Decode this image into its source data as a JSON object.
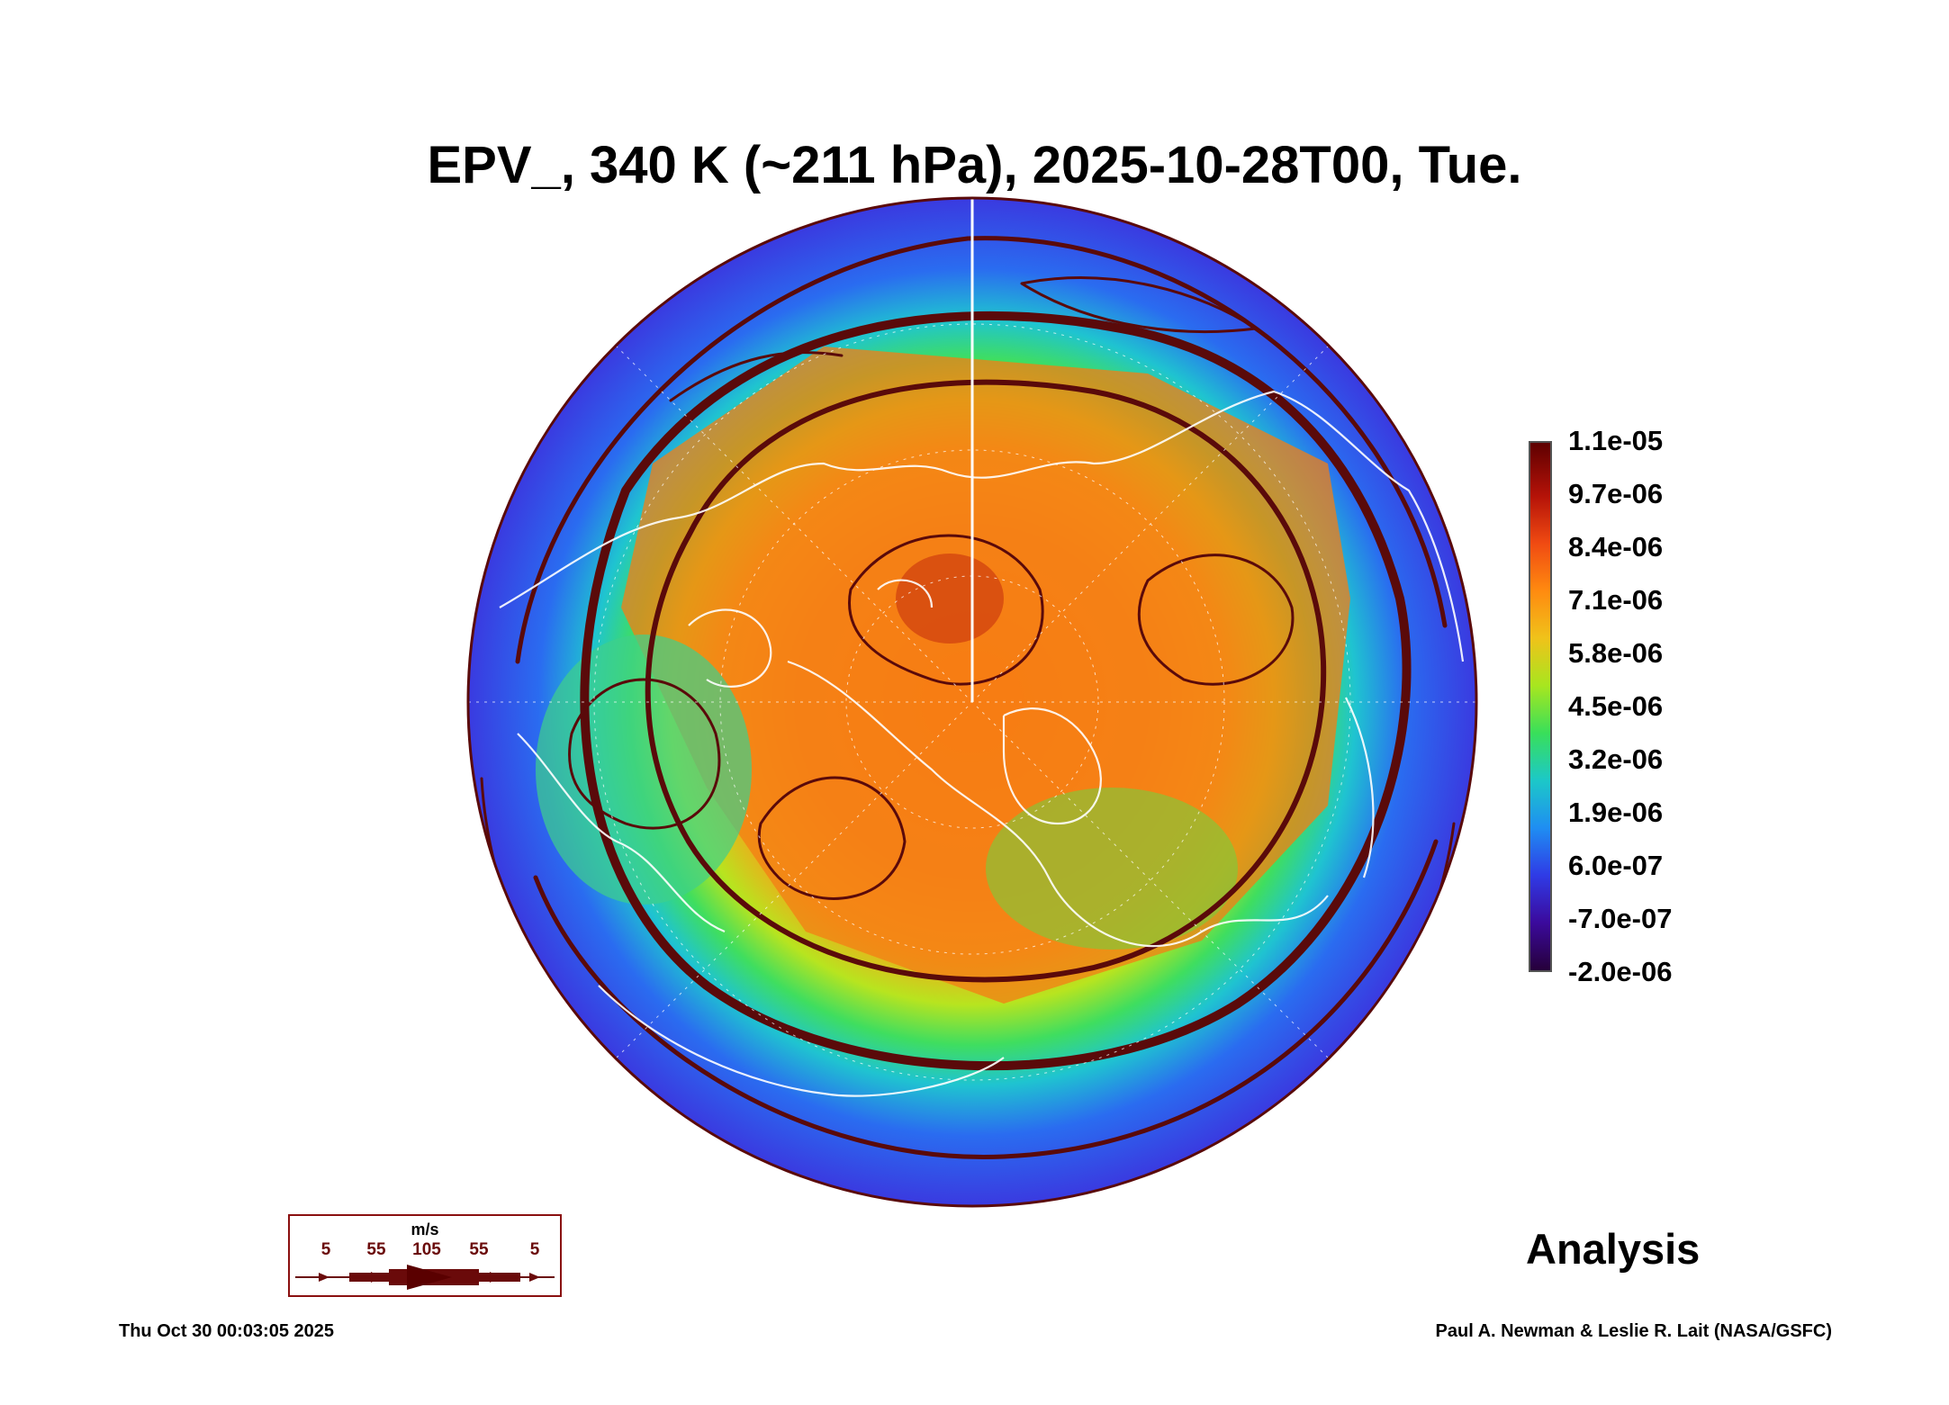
{
  "title": "EPV_, 340 K (~211 hPa), 2025-10-28T00, Tue.",
  "chart_data": {
    "type": "heatmap",
    "projection": "north polar stereographic",
    "variable": "EPV_",
    "level": "340 K (~211 hPa)",
    "valid_time": "2025-10-28T00",
    "overlay": "wind streamlines",
    "colorbar": {
      "labels": [
        "1.1e-05",
        "9.7e-06",
        "8.4e-06",
        "7.1e-06",
        "5.8e-06",
        "4.5e-06",
        "3.2e-06",
        "1.9e-06",
        "6.0e-07",
        "-7.0e-07",
        "-2.0e-06"
      ],
      "min": -2e-06,
      "max": 1.1e-05,
      "colors": [
        "#26003a",
        "#3b0a9c",
        "#2f3be6",
        "#1f8ef2",
        "#1cc8c8",
        "#39df5a",
        "#a8e61f",
        "#f0c21a",
        "#ff8a10",
        "#f04a12",
        "#b41208",
        "#5e0000"
      ]
    },
    "wind_legend": {
      "unit": "m/s",
      "values": [
        "5",
        "55",
        "105",
        "55",
        "5"
      ]
    }
  },
  "analysis_label": "Analysis",
  "footer": {
    "timestamp": "Thu Oct 30 00:03:05 2025",
    "credit": "Paul A. Newman & Leslie R. Lait (NASA/GSFC)"
  }
}
